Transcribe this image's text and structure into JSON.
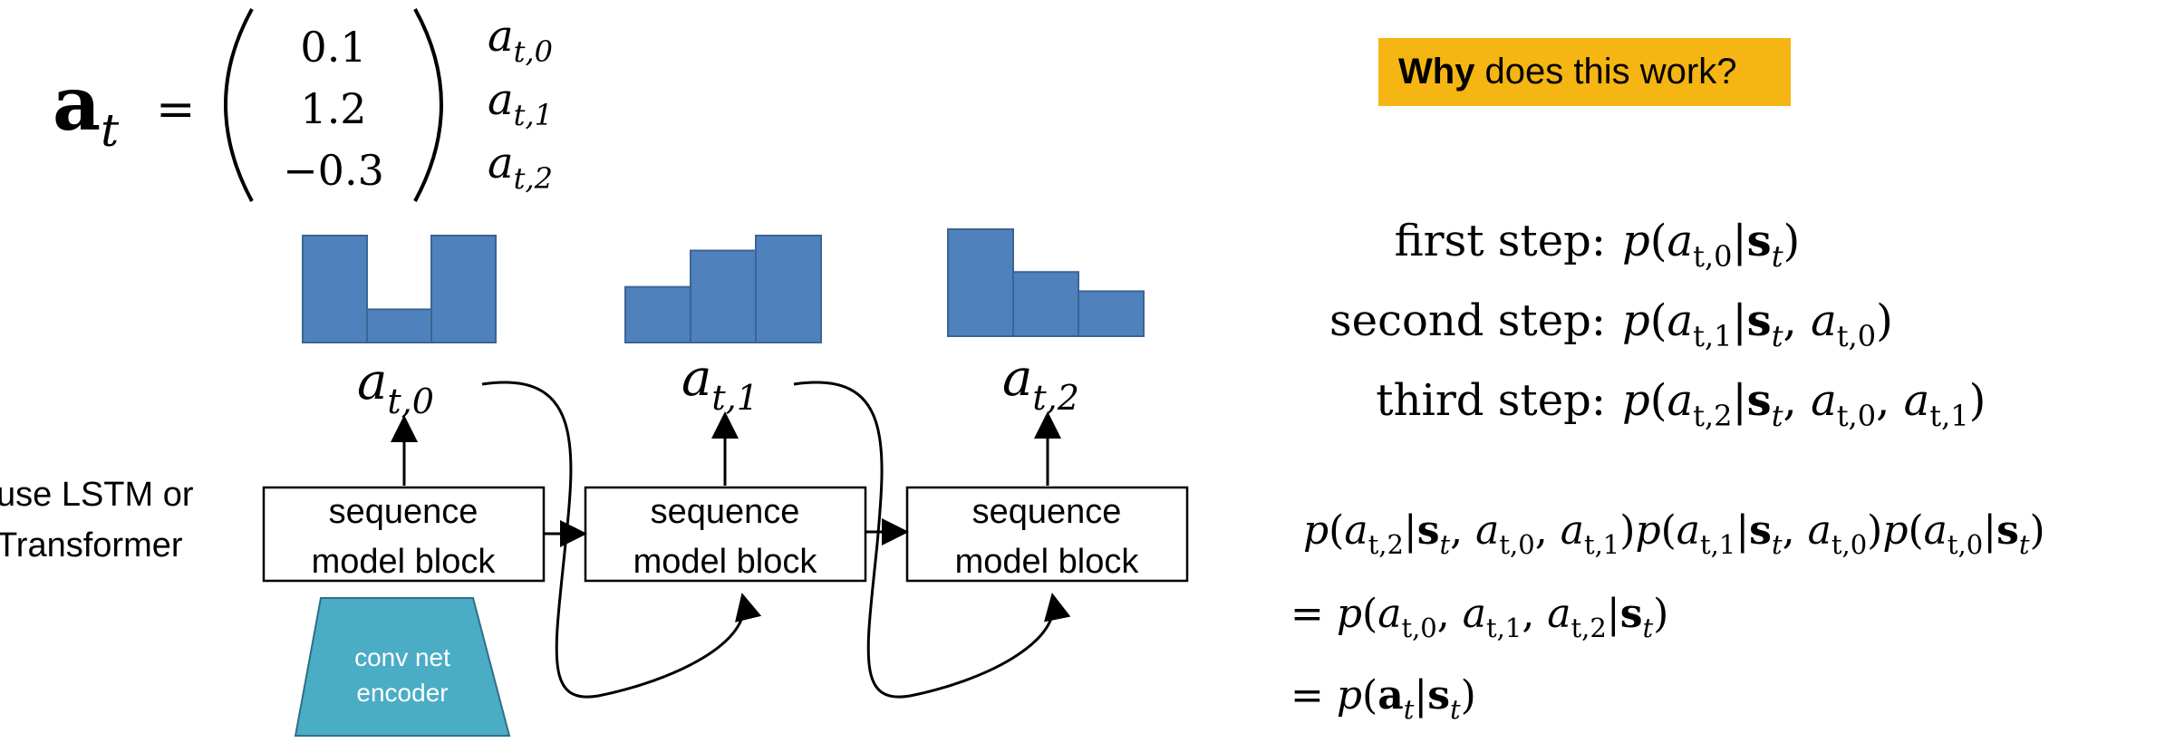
{
  "vector_panel": {
    "lhs_symbol": "a",
    "lhs_subscript": "t",
    "equals": "=",
    "values": [
      "0.1",
      "1.2",
      "−0.3"
    ],
    "labels": [
      {
        "base": "a",
        "sub": "t,0"
      },
      {
        "base": "a",
        "sub": "t,1"
      },
      {
        "base": "a",
        "sub": "t,2"
      }
    ]
  },
  "histograms": [
    {
      "name": "dist-0",
      "values": [
        1.0,
        0.31,
        1.0
      ],
      "label": {
        "base": "a",
        "sub": "t,0"
      }
    },
    {
      "name": "dist-1",
      "values": [
        0.52,
        0.86,
        1.0
      ],
      "label": {
        "base": "a",
        "sub": "t,1"
      }
    },
    {
      "name": "dist-2",
      "values": [
        1.0,
        0.6,
        0.42
      ],
      "label": {
        "base": "a",
        "sub": "t,2"
      }
    }
  ],
  "side_note": {
    "line1": "use LSTM or",
    "line2": "Transformer"
  },
  "blocks": [
    {
      "line1": "sequence",
      "line2": "model block"
    },
    {
      "line1": "sequence",
      "line2": "model block"
    },
    {
      "line1": "sequence",
      "line2": "model block"
    }
  ],
  "encoder": {
    "line1": "conv net",
    "line2": "encoder"
  },
  "question": {
    "bold": "Why",
    "rest": " does this work?"
  },
  "steps": [
    {
      "label": "first step:",
      "formula": "p(a",
      "sub": "t,0",
      "given": "|s",
      "gsub": "t",
      "tail": ")"
    },
    {
      "label": "second step:",
      "formula": "p(a",
      "sub": "t,1",
      "given": "|s",
      "gsub": "t",
      "tail": ", a"
    },
    {
      "label": "third step:",
      "formula": "p(a",
      "sub": "t,2",
      "given": "|s",
      "gsub": "t",
      "tail": ", a"
    }
  ],
  "derivation": {
    "line1": "p(a_{t,2}|s_t, a_{t,0}, a_{t,1})p(a_{t,1}|s_t, a_{t,0})p(a_{t,0}|s_t)",
    "line2": "= p(a_{t,0}, a_{t,1}, a_{t,2}|s_t)",
    "line3": "= p(a_t|s_t)"
  },
  "colors": {
    "bar_fill": "#4f81bd",
    "bar_stroke": "#3a6595",
    "encoder_fill": "#4bacc6",
    "question_bg": "#f5b512",
    "line": "#000000"
  }
}
